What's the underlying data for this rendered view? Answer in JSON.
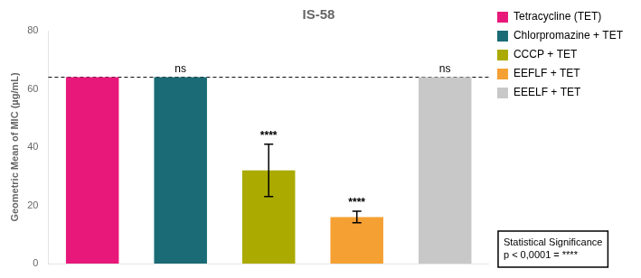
{
  "chart_data": {
    "type": "bar",
    "title": "IS-58",
    "ylabel": "Geometric Mean of MIC (µg/mL)",
    "categories": [
      "Tetracycline (TET)",
      "Chlorpromazine + TET",
      "CCCP + TET",
      "EEFLF + TET",
      "EEELF + TET"
    ],
    "values": [
      64.0,
      64.0,
      32.0,
      16.0,
      64.0
    ],
    "errors": [
      0.0,
      0.0,
      9.0,
      2.0,
      0.0
    ],
    "colors": [
      "#E8187A",
      "#1A6B75",
      "#AAAA00",
      "#F5A033",
      "#C8C8C8"
    ],
    "ylim": [
      0,
      80
    ],
    "yticks": [
      0,
      20,
      40,
      60,
      80
    ],
    "reference_line": 64.0,
    "annotations": [
      {
        "text": "ns",
        "category": "Chlorpromazine + TET"
      },
      {
        "text": "****",
        "category": "CCCP + TET"
      },
      {
        "text": "****",
        "category": "EEFLF + TET"
      },
      {
        "text": "ns",
        "category": "EEELF + TET"
      }
    ],
    "stat_box": [
      "Statistical Significance",
      "p < 0,0001 = ****"
    ],
    "grid": false,
    "legend": "right",
    "tick_labels": "y"
  }
}
